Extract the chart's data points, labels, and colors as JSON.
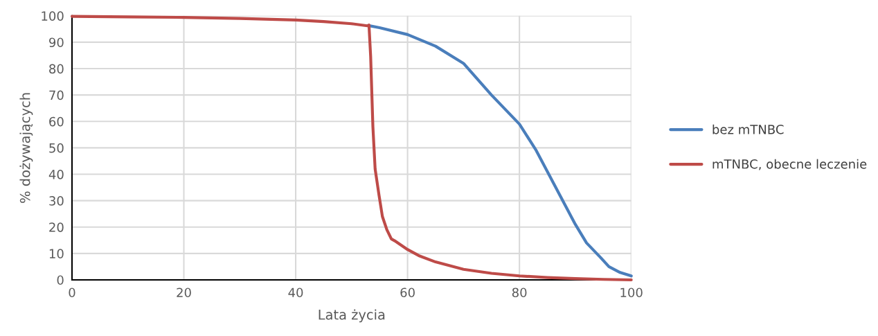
{
  "chart_data": {
    "type": "line",
    "xlabel": "Lata życia",
    "ylabel": "% dożywających",
    "xlim": [
      0,
      100
    ],
    "xticks": [
      0,
      20,
      40,
      60,
      80,
      100
    ],
    "ylim": [
      0,
      100
    ],
    "yticks": [
      0,
      10,
      20,
      30,
      40,
      50,
      60,
      70,
      80,
      90,
      100
    ],
    "grid": true,
    "legend": "right",
    "marker": "none",
    "line_style": "solid",
    "series": [
      {
        "name": "bez mTNBC",
        "color": "#4a7ebb",
        "x": [
          53,
          55,
          60,
          65,
          70,
          75,
          80,
          83,
          86,
          88,
          90,
          92,
          94.5,
          96,
          98,
          100
        ],
        "values": [
          96.3,
          95.5,
          92.9,
          88.5,
          82,
          70,
          59,
          49,
          37,
          29,
          21,
          14,
          8.5,
          5,
          2.8,
          1.5
        ]
      },
      {
        "name": "mTNBC, obecne leczenie",
        "color": "#be4b48",
        "x": [
          0,
          10,
          20,
          30,
          40,
          45,
          50,
          52.8,
          53.1,
          53.4,
          53.8,
          54.2,
          54.9,
          55.5,
          56.3,
          57.1,
          57.7,
          60,
          62,
          65,
          70,
          75,
          80,
          85,
          90,
          95,
          100
        ],
        "values": [
          99.8,
          99.6,
          99.4,
          99,
          98.4,
          97.8,
          97,
          96.2,
          96.5,
          84.6,
          58,
          42,
          32,
          24,
          19,
          15.5,
          14.8,
          11.5,
          9.2,
          6.8,
          4,
          2.5,
          1.5,
          0.9,
          0.5,
          0.2,
          0
        ]
      }
    ]
  }
}
